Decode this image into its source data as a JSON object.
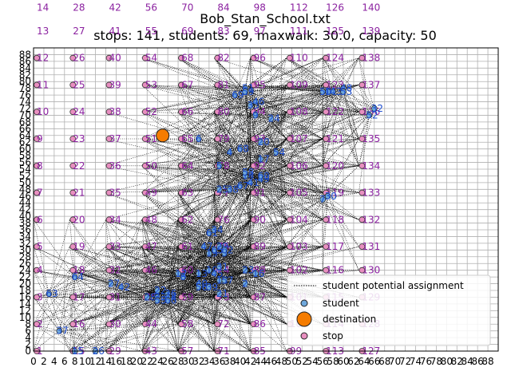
{
  "chart_data": {
    "type": "scatter",
    "title": "Bob_Stan_School.txt",
    "subtitle": "stops: 141, students: 69, maxwalk: 30.0, capacity: 50",
    "xlabel": "",
    "ylabel": "",
    "xlim": [
      0,
      90
    ],
    "ylim": [
      0,
      90
    ],
    "x_ticks": [
      0,
      2,
      4,
      6,
      8,
      10,
      12,
      14,
      16,
      18,
      20,
      22,
      24,
      26,
      28,
      30,
      32,
      34,
      36,
      38,
      40,
      42,
      44,
      46,
      48,
      50,
      52,
      54,
      56,
      58,
      60,
      62,
      64,
      66,
      68,
      70,
      72,
      74,
      76,
      78,
      80,
      82,
      84,
      86,
      88
    ],
    "y_ticks": [
      0,
      2,
      4,
      6,
      8,
      10,
      12,
      14,
      16,
      18,
      20,
      22,
      24,
      26,
      28,
      30,
      32,
      34,
      36,
      38,
      40,
      42,
      44,
      46,
      48,
      50,
      52,
      54,
      56,
      58,
      60,
      62,
      64,
      66,
      68,
      70,
      72,
      74,
      76,
      78,
      80,
      82,
      84,
      86,
      88
    ],
    "grid": true,
    "legend_position": "lower-right",
    "legend": [
      {
        "label": "student potential assignment",
        "marker": "dotted-line",
        "color": "#000000"
      },
      {
        "label": "student",
        "marker": "circle-small",
        "color": "#6fa8dc"
      },
      {
        "label": "destination",
        "marker": "circle-large",
        "color": "#f57c00"
      },
      {
        "label": "stop",
        "marker": "circle",
        "color": "#e88fc0"
      }
    ],
    "colors": {
      "stop": "#e88fc0",
      "student": "#6fa8dc",
      "destination": "#f57c00",
      "stop_label": "#8b22a0",
      "student_label": "#1f4fd0",
      "assignment": "#000000"
    },
    "destination": {
      "x": 25,
      "y": 64
    },
    "stop_column_x": [
      0,
      7,
      14,
      21,
      28,
      35,
      42,
      49,
      56,
      63,
      70
    ],
    "stop_row_y": [
      0,
      8,
      16,
      24,
      31,
      39,
      47,
      55,
      63,
      71,
      79,
      87
    ],
    "stops": [
      {
        "id": "1",
        "x": 0,
        "y": 0
      },
      {
        "id": "2",
        "x": 0,
        "y": 8
      },
      {
        "id": "3",
        "x": 0,
        "y": 16
      },
      {
        "id": "4",
        "x": 0,
        "y": 24
      },
      {
        "id": "5",
        "x": 0,
        "y": 31
      },
      {
        "id": "6",
        "x": 0,
        "y": 39
      },
      {
        "id": "7",
        "x": 0,
        "y": 47
      },
      {
        "id": "8",
        "x": 0,
        "y": 55
      },
      {
        "id": "9",
        "x": 0,
        "y": 63
      },
      {
        "id": "10",
        "x": 0,
        "y": 71
      },
      {
        "id": "11",
        "x": 0,
        "y": 79
      },
      {
        "id": "12",
        "x": 0,
        "y": 87
      },
      {
        "id": "13",
        "x": 0,
        "y": 95
      },
      {
        "id": "14",
        "x": 0,
        "y": 102
      },
      {
        "id": "15",
        "x": 7,
        "y": 0
      },
      {
        "id": "16",
        "x": 7,
        "y": 8
      },
      {
        "id": "17",
        "x": 7,
        "y": 16
      },
      {
        "id": "18",
        "x": 7,
        "y": 24
      },
      {
        "id": "19",
        "x": 7,
        "y": 31
      },
      {
        "id": "20",
        "x": 7,
        "y": 39
      },
      {
        "id": "21",
        "x": 7,
        "y": 47
      },
      {
        "id": "22",
        "x": 7,
        "y": 55
      },
      {
        "id": "23",
        "x": 7,
        "y": 63
      },
      {
        "id": "24",
        "x": 7,
        "y": 71
      },
      {
        "id": "25",
        "x": 7,
        "y": 79
      },
      {
        "id": "26",
        "x": 7,
        "y": 87
      },
      {
        "id": "27",
        "x": 7,
        "y": 95
      },
      {
        "id": "28",
        "x": 7,
        "y": 102
      },
      {
        "id": "29",
        "x": 14,
        "y": 0
      },
      {
        "id": "30",
        "x": 14,
        "y": 8
      },
      {
        "id": "31",
        "x": 14,
        "y": 16
      },
      {
        "id": "32",
        "x": 14,
        "y": 24
      },
      {
        "id": "33",
        "x": 14,
        "y": 31
      },
      {
        "id": "34",
        "x": 14,
        "y": 39
      },
      {
        "id": "35",
        "x": 14,
        "y": 47
      },
      {
        "id": "36",
        "x": 14,
        "y": 55
      },
      {
        "id": "37",
        "x": 14,
        "y": 63
      },
      {
        "id": "38",
        "x": 14,
        "y": 71
      },
      {
        "id": "39",
        "x": 14,
        "y": 79
      },
      {
        "id": "40",
        "x": 14,
        "y": 87
      },
      {
        "id": "41",
        "x": 14,
        "y": 95
      },
      {
        "id": "42",
        "x": 14,
        "y": 102
      },
      {
        "id": "43",
        "x": 21,
        "y": 0
      },
      {
        "id": "44",
        "x": 21,
        "y": 8
      },
      {
        "id": "45",
        "x": 21,
        "y": 16
      },
      {
        "id": "46",
        "x": 21,
        "y": 24
      },
      {
        "id": "47",
        "x": 21,
        "y": 31
      },
      {
        "id": "48",
        "x": 21,
        "y": 39
      },
      {
        "id": "49",
        "x": 21,
        "y": 47
      },
      {
        "id": "50",
        "x": 21,
        "y": 55
      },
      {
        "id": "51",
        "x": 21,
        "y": 63
      },
      {
        "id": "52",
        "x": 21,
        "y": 71
      },
      {
        "id": "53",
        "x": 21,
        "y": 79
      },
      {
        "id": "54",
        "x": 21,
        "y": 87
      },
      {
        "id": "55",
        "x": 21,
        "y": 95
      },
      {
        "id": "56",
        "x": 21,
        "y": 102
      },
      {
        "id": "57",
        "x": 28,
        "y": 0
      },
      {
        "id": "58",
        "x": 28,
        "y": 8
      },
      {
        "id": "59",
        "x": 28,
        "y": 16
      },
      {
        "id": "60",
        "x": 28,
        "y": 24
      },
      {
        "id": "61",
        "x": 28,
        "y": 31
      },
      {
        "id": "62",
        "x": 28,
        "y": 39
      },
      {
        "id": "63",
        "x": 28,
        "y": 47
      },
      {
        "id": "64",
        "x": 28,
        "y": 55
      },
      {
        "id": "65",
        "x": 28,
        "y": 63
      },
      {
        "id": "66",
        "x": 28,
        "y": 71
      },
      {
        "id": "67",
        "x": 28,
        "y": 79
      },
      {
        "id": "68",
        "x": 28,
        "y": 87
      },
      {
        "id": "69",
        "x": 28,
        "y": 95
      },
      {
        "id": "70",
        "x": 28,
        "y": 102
      },
      {
        "id": "71",
        "x": 35,
        "y": 0
      },
      {
        "id": "72",
        "x": 35,
        "y": 8
      },
      {
        "id": "73",
        "x": 35,
        "y": 16
      },
      {
        "id": "74",
        "x": 35,
        "y": 24
      },
      {
        "id": "75",
        "x": 35,
        "y": 31
      },
      {
        "id": "76",
        "x": 35,
        "y": 39
      },
      {
        "id": "77",
        "x": 35,
        "y": 47
      },
      {
        "id": "78",
        "x": 35,
        "y": 55
      },
      {
        "id": "79",
        "x": 35,
        "y": 63
      },
      {
        "id": "80",
        "x": 35,
        "y": 71
      },
      {
        "id": "81",
        "x": 35,
        "y": 79
      },
      {
        "id": "82",
        "x": 35,
        "y": 87
      },
      {
        "id": "83",
        "x": 35,
        "y": 95
      },
      {
        "id": "84",
        "x": 35,
        "y": 102
      },
      {
        "id": "85",
        "x": 42,
        "y": 0
      },
      {
        "id": "86",
        "x": 42,
        "y": 8
      },
      {
        "id": "87",
        "x": 42,
        "y": 16
      },
      {
        "id": "88",
        "x": 42,
        "y": 24
      },
      {
        "id": "89",
        "x": 42,
        "y": 31
      },
      {
        "id": "90",
        "x": 42,
        "y": 39
      },
      {
        "id": "91",
        "x": 42,
        "y": 47
      },
      {
        "id": "92",
        "x": 42,
        "y": 55
      },
      {
        "id": "93",
        "x": 42,
        "y": 63
      },
      {
        "id": "94",
        "x": 42,
        "y": 71
      },
      {
        "id": "95",
        "x": 42,
        "y": 79
      },
      {
        "id": "96",
        "x": 42,
        "y": 87
      },
      {
        "id": "97",
        "x": 42,
        "y": 95
      },
      {
        "id": "98",
        "x": 42,
        "y": 102
      },
      {
        "id": "99",
        "x": 49,
        "y": 0
      },
      {
        "id": "100",
        "x": 49,
        "y": 8
      },
      {
        "id": "101",
        "x": 49,
        "y": 16
      },
      {
        "id": "102",
        "x": 49,
        "y": 24
      },
      {
        "id": "103",
        "x": 49,
        "y": 31
      },
      {
        "id": "104",
        "x": 49,
        "y": 39
      },
      {
        "id": "105",
        "x": 49,
        "y": 47
      },
      {
        "id": "106",
        "x": 49,
        "y": 55
      },
      {
        "id": "107",
        "x": 49,
        "y": 63
      },
      {
        "id": "108",
        "x": 49,
        "y": 71
      },
      {
        "id": "109",
        "x": 49,
        "y": 79
      },
      {
        "id": "110",
        "x": 49,
        "y": 87
      },
      {
        "id": "111",
        "x": 49,
        "y": 95
      },
      {
        "id": "112",
        "x": 49,
        "y": 102
      },
      {
        "id": "113",
        "x": 56,
        "y": 0
      },
      {
        "id": "114",
        "x": 56,
        "y": 8
      },
      {
        "id": "115",
        "x": 56,
        "y": 16
      },
      {
        "id": "116",
        "x": 56,
        "y": 24
      },
      {
        "id": "117",
        "x": 56,
        "y": 31
      },
      {
        "id": "118",
        "x": 56,
        "y": 39
      },
      {
        "id": "119",
        "x": 56,
        "y": 47
      },
      {
        "id": "120",
        "x": 56,
        "y": 55
      },
      {
        "id": "121",
        "x": 56,
        "y": 63
      },
      {
        "id": "122",
        "x": 56,
        "y": 71
      },
      {
        "id": "123",
        "x": 56,
        "y": 79
      },
      {
        "id": "124",
        "x": 56,
        "y": 87
      },
      {
        "id": "125",
        "x": 56,
        "y": 95
      },
      {
        "id": "126",
        "x": 56,
        "y": 102
      },
      {
        "id": "127",
        "x": 63,
        "y": 0
      },
      {
        "id": "128",
        "x": 63,
        "y": 8
      },
      {
        "id": "129",
        "x": 63,
        "y": 16
      },
      {
        "id": "130",
        "x": 63,
        "y": 24
      },
      {
        "id": "131",
        "x": 63,
        "y": 31
      },
      {
        "id": "132",
        "x": 63,
        "y": 39
      },
      {
        "id": "133",
        "x": 63,
        "y": 47
      },
      {
        "id": "134",
        "x": 63,
        "y": 55
      },
      {
        "id": "135",
        "x": 63,
        "y": 63
      },
      {
        "id": "136",
        "x": 63,
        "y": 71
      },
      {
        "id": "137",
        "x": 63,
        "y": 79
      },
      {
        "id": "138",
        "x": 63,
        "y": 87
      },
      {
        "id": "139",
        "x": 63,
        "y": 95
      },
      {
        "id": "140",
        "x": 63,
        "y": 102
      }
    ],
    "students": [
      {
        "id": "1",
        "x": 41,
        "y": 77
      },
      {
        "id": "2",
        "x": 41,
        "y": 20
      },
      {
        "id": "3",
        "x": 37,
        "y": 29
      },
      {
        "id": "4",
        "x": 38,
        "y": 59
      },
      {
        "id": "5",
        "x": 36,
        "y": 55
      },
      {
        "id": "6",
        "x": 32,
        "y": 63
      },
      {
        "id": "7",
        "x": 56,
        "y": 45
      },
      {
        "id": "8",
        "x": 29,
        "y": 22
      },
      {
        "id": "9",
        "x": 43,
        "y": 70
      },
      {
        "id": "10",
        "x": 34,
        "y": 24
      },
      {
        "id": "11",
        "x": 57,
        "y": 77
      },
      {
        "id": "12",
        "x": 28,
        "y": 23
      },
      {
        "id": "13",
        "x": 32,
        "y": 23
      },
      {
        "id": "14",
        "x": 41,
        "y": 52
      },
      {
        "id": "15",
        "x": 8,
        "y": 0
      },
      {
        "id": "16",
        "x": 43,
        "y": 23
      },
      {
        "id": "17",
        "x": 44,
        "y": 57
      },
      {
        "id": "18",
        "x": 36,
        "y": 21
      },
      {
        "id": "19",
        "x": 34,
        "y": 29
      },
      {
        "id": "20",
        "x": 44,
        "y": 62
      },
      {
        "id": "21",
        "x": 36,
        "y": 17
      },
      {
        "id": "22",
        "x": 24,
        "y": 18
      },
      {
        "id": "23",
        "x": 41,
        "y": 24
      },
      {
        "id": "24",
        "x": 46,
        "y": 69
      },
      {
        "id": "25",
        "x": 36,
        "y": 48
      },
      {
        "id": "26",
        "x": 12,
        "y": 0
      },
      {
        "id": "27",
        "x": 15,
        "y": 20
      },
      {
        "id": "28",
        "x": 22,
        "y": 16
      },
      {
        "id": "29",
        "x": 36,
        "y": 31
      },
      {
        "id": "30",
        "x": 57,
        "y": 46
      },
      {
        "id": "31",
        "x": 36,
        "y": 25
      },
      {
        "id": "32",
        "x": 66,
        "y": 72
      },
      {
        "id": "33",
        "x": 24,
        "y": 16
      },
      {
        "id": "34",
        "x": 35,
        "y": 36
      },
      {
        "id": "35",
        "x": 42,
        "y": 73
      },
      {
        "id": "36",
        "x": 26,
        "y": 17
      },
      {
        "id": "37",
        "x": 5,
        "y": 6
      },
      {
        "id": "38",
        "x": 38,
        "y": 48
      },
      {
        "id": "39",
        "x": 34,
        "y": 19
      },
      {
        "id": "40",
        "x": 32,
        "y": 20
      },
      {
        "id": "41",
        "x": 42,
        "y": 50
      },
      {
        "id": "42",
        "x": 17,
        "y": 19
      },
      {
        "id": "43",
        "x": 58,
        "y": 77
      },
      {
        "id": "44",
        "x": 26,
        "y": 16
      },
      {
        "id": "45",
        "x": 35,
        "y": 23
      },
      {
        "id": "46",
        "x": 43,
        "y": 74
      },
      {
        "id": "47",
        "x": 33,
        "y": 31
      },
      {
        "id": "48",
        "x": 60,
        "y": 78
      },
      {
        "id": "49",
        "x": 44,
        "y": 51
      },
      {
        "id": "50",
        "x": 56,
        "y": 77
      },
      {
        "id": "51",
        "x": 41,
        "y": 78
      },
      {
        "id": "52",
        "x": 65,
        "y": 70
      },
      {
        "id": "53",
        "x": 60,
        "y": 77
      },
      {
        "id": "54",
        "x": 47,
        "y": 59
      },
      {
        "id": "55",
        "x": 24,
        "y": 15
      },
      {
        "id": "56",
        "x": 32,
        "y": 19
      },
      {
        "id": "57",
        "x": 37,
        "y": 21
      },
      {
        "id": "58",
        "x": 41,
        "y": 53
      },
      {
        "id": "59",
        "x": 41,
        "y": 77
      },
      {
        "id": "60",
        "x": 44,
        "y": 52
      },
      {
        "id": "61",
        "x": 34,
        "y": 35
      },
      {
        "id": "62",
        "x": 37,
        "y": 30
      },
      {
        "id": "63",
        "x": 3,
        "y": 17
      },
      {
        "id": "64",
        "x": 8,
        "y": 22
      },
      {
        "id": "65",
        "x": 35,
        "y": 30
      },
      {
        "id": "66",
        "x": 26,
        "y": 15
      },
      {
        "id": "67",
        "x": 40,
        "y": 49
      },
      {
        "id": "68",
        "x": 40,
        "y": 60
      },
      {
        "id": "69",
        "x": 39,
        "y": 76
      }
    ]
  }
}
